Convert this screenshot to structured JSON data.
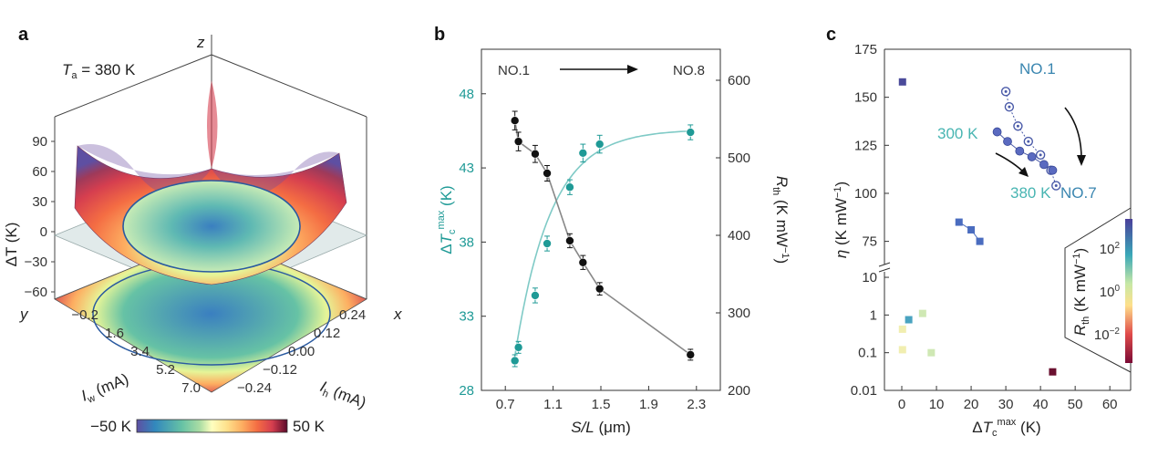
{
  "panel_a": {
    "label": "a",
    "ta_prefix": "T",
    "ta_sub": "a",
    "ta_value": " = 380 K",
    "z_axis": "z",
    "x_axis": "x",
    "y_axis": "y",
    "dT_label": "ΔT (K)",
    "dT_ticks": [
      "90",
      "60",
      "30",
      "0",
      "−30",
      "−60"
    ],
    "iw_ticks": [
      "−0.2",
      "1.6",
      "3.4",
      "5.2",
      "7.0"
    ],
    "ih_ticks": [
      "0.24",
      "0.12",
      "0.00",
      "−0.12",
      "−0.24"
    ],
    "iw_label_main": "I",
    "iw_label_sub": "w",
    "iw_label_unit": " (mA)",
    "ih_label_main": "I",
    "ih_label_sub": "h",
    "ih_label_unit": " (mA)",
    "colorbar_min": "−50 K",
    "colorbar_max": "50 K",
    "colormap": [
      "#5e4fa2",
      "#3288bd",
      "#66c2a5",
      "#abdda4",
      "#e6f598",
      "#fee08b",
      "#fdae61",
      "#f46d43",
      "#d53e4f",
      "#9e0142",
      "#5a0a2a"
    ]
  },
  "chart_data": [
    {
      "panel": "b",
      "type": "scatter",
      "label": "b",
      "xlabel_main": "S/L",
      "xlabel_unit": " (μm)",
      "ylabel_left": "ΔTcmax (K)",
      "ylabel_right": "Rth (K mW−1)",
      "xlim": [
        0.5,
        2.5
      ],
      "x_ticks": [
        "0.7",
        "1.1",
        "1.5",
        "1.9",
        "2.3"
      ],
      "y_left_lim": [
        28,
        51
      ],
      "y_left_ticks": [
        "28",
        "33",
        "38",
        "43",
        "48"
      ],
      "y_right_lim": [
        200,
        640
      ],
      "y_right_ticks": [
        "200",
        "300",
        "400",
        "500",
        "600"
      ],
      "annotation_left": "NO.1",
      "annotation_right": "NO.8",
      "series": [
        {
          "axis": "left",
          "color": "#1f9a96",
          "x": [
            0.78,
            0.81,
            0.95,
            1.05,
            1.24,
            1.35,
            1.49,
            2.25
          ],
          "y": [
            30.0,
            30.9,
            34.4,
            37.9,
            41.7,
            44.0,
            44.6,
            45.4
          ],
          "yerr": [
            0.4,
            0.4,
            0.5,
            0.5,
            0.5,
            0.6,
            0.6,
            0.5
          ]
        },
        {
          "axis": "right",
          "color": "#111111",
          "x": [
            0.78,
            0.81,
            0.95,
            1.05,
            1.24,
            1.35,
            1.49,
            2.25
          ],
          "y": [
            548,
            521,
            505,
            480,
            393,
            365,
            331,
            246
          ],
          "yerr": [
            12,
            12,
            11,
            10,
            9,
            9,
            8,
            7
          ]
        }
      ]
    },
    {
      "panel": "c",
      "type": "scatter",
      "label": "c",
      "xlabel": "ΔTcmax (K)",
      "ylabel": "η (K mW−1)",
      "xlim": [
        -5,
        66
      ],
      "x_ticks": [
        "0",
        "10",
        "20",
        "30",
        "40",
        "50",
        "60"
      ],
      "y_upper_ticks": [
        "75",
        "100",
        "125",
        "150",
        "175"
      ],
      "y_upper_lim": [
        62,
        175
      ],
      "y_lower_ticks": [
        "0.01",
        "0.1",
        "1",
        "10"
      ],
      "y_lower_lim_log": [
        0.01,
        14
      ],
      "annotations": {
        "no1": "NO.1",
        "no7": "NO.7",
        "t300": "300 K",
        "t380": "380 K"
      },
      "colorbar_label": "Rth (K mW−1)",
      "colorbar_ticks": [
        "10−2",
        "100",
        "102"
      ],
      "series_300K": {
        "x": [
          30.0,
          31.0,
          33.5,
          36.5,
          40.0,
          43.0,
          44.5
        ],
        "y": [
          153,
          145,
          135,
          127,
          120,
          112,
          104
        ]
      },
      "series_380K": {
        "x": [
          27.5,
          30.5,
          34.0,
          37.5,
          41.0,
          43.5
        ],
        "y": [
          132,
          127,
          122,
          119,
          115,
          112
        ]
      },
      "squares": [
        {
          "x": 0.2,
          "y": 158,
          "color": "#4a4a9a"
        },
        {
          "x": 16.5,
          "y": 85,
          "color": "#4a6cbf"
        },
        {
          "x": 20,
          "y": 81,
          "color": "#4a6cbf"
        },
        {
          "x": 22.5,
          "y": 75,
          "color": "#4a6cbf"
        },
        {
          "x": 2.0,
          "y": 0.75,
          "color": "#4aa3c0"
        },
        {
          "x": 6.0,
          "y": 1.1,
          "color": "#cfe8b4"
        },
        {
          "x": 0.2,
          "y": 0.42,
          "color": "#f1eeb0"
        },
        {
          "x": 0.2,
          "y": 0.12,
          "color": "#f1eeb0"
        },
        {
          "x": 8.5,
          "y": 0.1,
          "color": "#cfe8b4"
        },
        {
          "x": 43.5,
          "y": 0.031,
          "color": "#6a1030"
        }
      ]
    }
  ]
}
